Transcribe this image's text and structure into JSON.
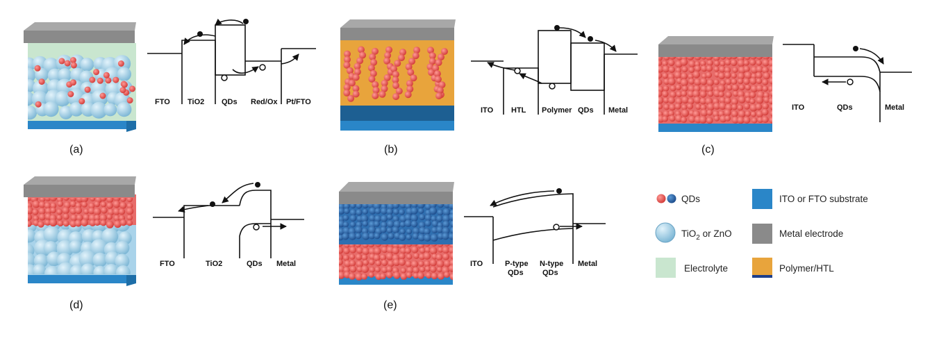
{
  "panels": {
    "a": {
      "caption": "(a)",
      "labels": [
        "FTO",
        "TiO2",
        "QDs",
        "Red/Ox",
        "Pt/FTO"
      ]
    },
    "b": {
      "caption": "(b)",
      "labels": [
        "ITO",
        "HTL",
        "Polymer",
        "QDs",
        "Metal"
      ]
    },
    "c": {
      "caption": "(c)",
      "labels": [
        "ITO",
        "QDs",
        "Metal"
      ]
    },
    "d": {
      "caption": "(d)",
      "labels": [
        "FTO",
        "TiO2",
        "QDs",
        "Metal"
      ]
    },
    "e": {
      "caption": "(e)",
      "labels": [
        "ITO",
        "P-type",
        "QDs",
        "N-type",
        "QDs",
        "Metal"
      ]
    }
  },
  "legend": {
    "qds": "QDs",
    "tio2_a": "TiO",
    "tio2_sub": "2",
    "tio2_b": " or ZnO",
    "electrolyte": "Electrolyte",
    "substrate": "ITO or FTO substrate",
    "metal": "Metal electrode",
    "polymer": "Polymer/HTL"
  },
  "colors": {
    "substrate": "#2a86c8",
    "metal": "#8a8a8a",
    "electrolyte": "#c9e6cf",
    "polymer": "#e8a43c",
    "polymer_dark": "#1d3f8a",
    "qd_red": "#e85a58",
    "qd_blue": "#2f6fb0",
    "tio2": "#a9d3ea"
  }
}
